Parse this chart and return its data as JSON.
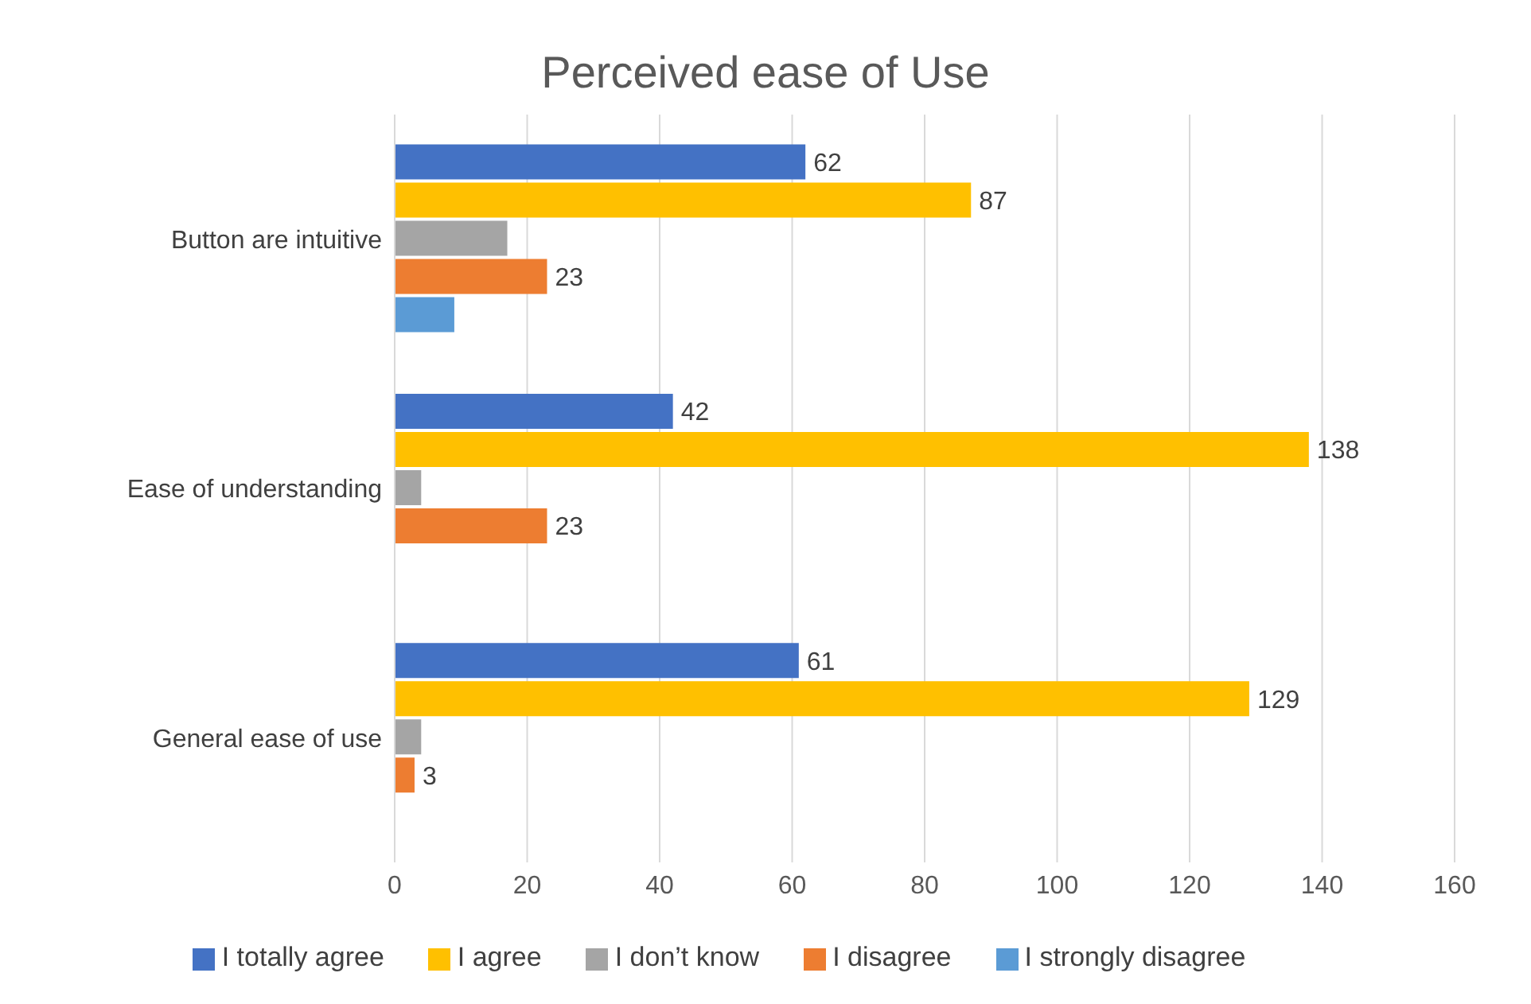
{
  "chart_data": {
    "type": "bar",
    "orientation": "horizontal",
    "title": "Perceived ease of Use",
    "categories": [
      "Button are intuitive",
      "Ease of understanding",
      "General ease of use"
    ],
    "series": [
      {
        "name": "I totally agree",
        "color": "#4472c4",
        "values": [
          62,
          42,
          61
        ],
        "value_labels": [
          "62",
          "42",
          "61"
        ]
      },
      {
        "name": "I agree",
        "color": "#ffc000",
        "values": [
          87,
          138,
          129
        ],
        "value_labels": [
          "87",
          "138",
          "129"
        ]
      },
      {
        "name": "I don’t know",
        "color": "#a5a5a5",
        "values": [
          17,
          4,
          4
        ]
      },
      {
        "name": "I disagree",
        "color": "#ed7d31",
        "values": [
          23,
          23,
          3
        ],
        "value_labels": [
          "23",
          "23",
          "3"
        ]
      },
      {
        "name": "I strongly disagree",
        "color": "#5b9bd5",
        "values": [
          9,
          null,
          null
        ]
      }
    ],
    "xlim": [
      0,
      160
    ],
    "xticks": [
      0,
      20,
      40,
      60,
      80,
      100,
      120,
      140,
      160
    ],
    "grid": "x",
    "legend": "bottom"
  }
}
